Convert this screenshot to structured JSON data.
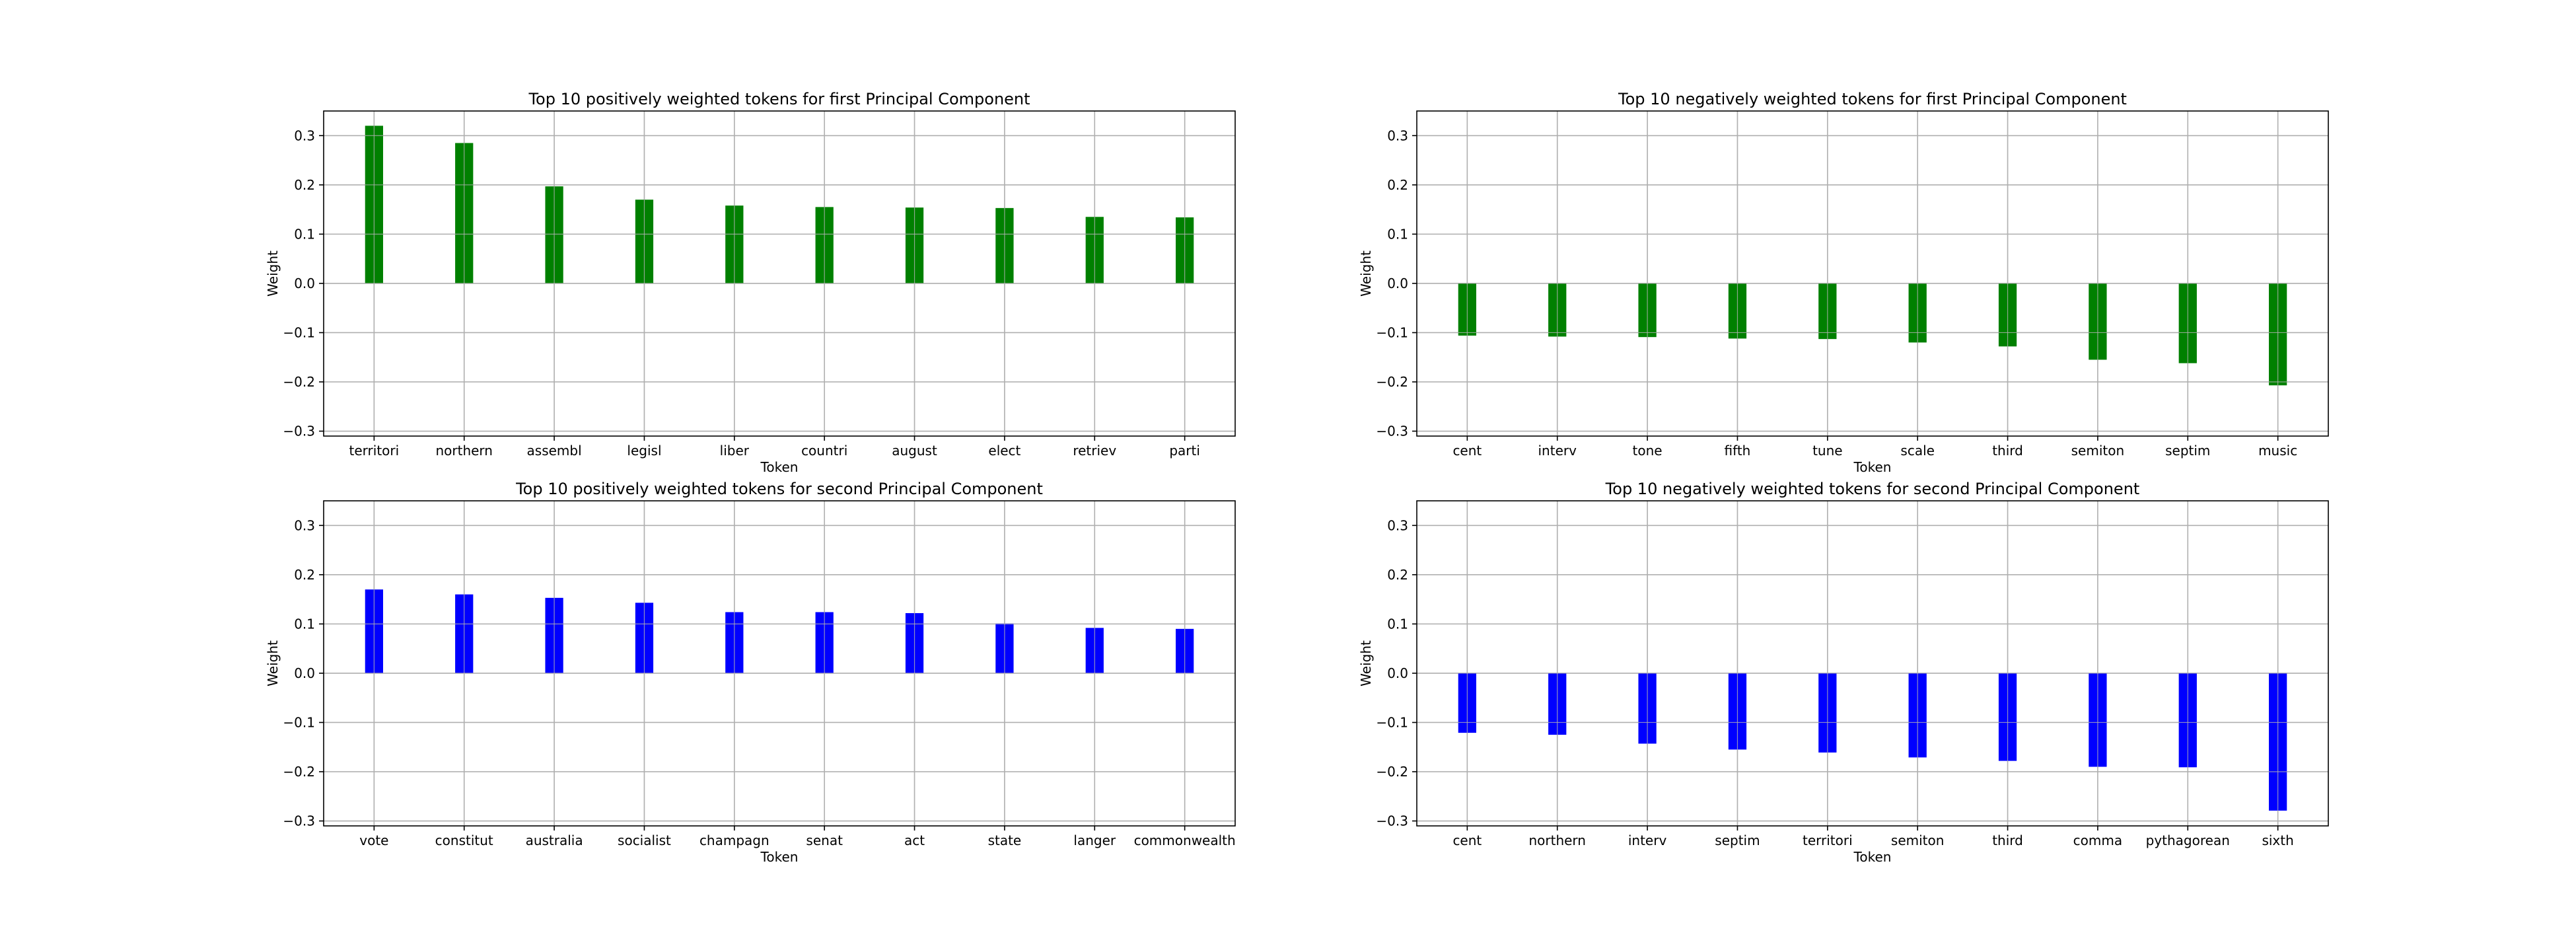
{
  "chart_data": [
    {
      "type": "bar",
      "title": "Top 10 positively weighted tokens for first Principal Component",
      "xlabel": "Token",
      "ylabel": "Weight",
      "color": "#008000",
      "categories": [
        "territori",
        "northern",
        "assembl",
        "legisl",
        "liber",
        "countri",
        "august",
        "elect",
        "retriev",
        "parti"
      ],
      "values": [
        0.32,
        0.285,
        0.197,
        0.17,
        0.158,
        0.155,
        0.154,
        0.153,
        0.135,
        0.134
      ],
      "ylim": [
        -0.31,
        0.35
      ],
      "yticks": [
        "-0.3",
        "-0.2",
        "-0.1",
        "0.0",
        "0.1",
        "0.2",
        "0.3"
      ],
      "grid": true
    },
    {
      "type": "bar",
      "title": "Top 10 negatively weighted tokens for first Principal Component",
      "xlabel": "Token",
      "ylabel": "Weight",
      "color": "#008000",
      "categories": [
        "cent",
        "interv",
        "tone",
        "fifth",
        "tune",
        "scale",
        "third",
        "semiton",
        "septim",
        "music"
      ],
      "values": [
        -0.106,
        -0.108,
        -0.109,
        -0.112,
        -0.113,
        -0.12,
        -0.128,
        -0.155,
        -0.162,
        -0.207
      ],
      "ylim": [
        -0.31,
        0.35
      ],
      "yticks": [
        "-0.3",
        "-0.2",
        "-0.1",
        "0.0",
        "0.1",
        "0.2",
        "0.3"
      ],
      "grid": true
    },
    {
      "type": "bar",
      "title": "Top 10 positively weighted tokens for second Principal Component",
      "xlabel": "Token",
      "ylabel": "Weight",
      "color": "#0000ff",
      "categories": [
        "vote",
        "constitut",
        "australia",
        "socialist",
        "champagn",
        "senat",
        "act",
        "state",
        "langer",
        "commonwealth"
      ],
      "values": [
        0.17,
        0.16,
        0.153,
        0.143,
        0.124,
        0.124,
        0.122,
        0.101,
        0.092,
        0.09
      ],
      "ylim": [
        -0.31,
        0.35
      ],
      "yticks": [
        "-0.3",
        "-0.2",
        "-0.1",
        "0.0",
        "0.1",
        "0.2",
        "0.3"
      ],
      "grid": true
    },
    {
      "type": "bar",
      "title": "Top 10 negatively weighted tokens for second Principal Component",
      "xlabel": "Token",
      "ylabel": "Weight",
      "color": "#0000ff",
      "categories": [
        "cent",
        "northern",
        "interv",
        "septim",
        "territori",
        "semiton",
        "third",
        "comma",
        "pythagorean",
        "sixth"
      ],
      "values": [
        -0.121,
        -0.125,
        -0.143,
        -0.155,
        -0.161,
        -0.171,
        -0.178,
        -0.19,
        -0.191,
        -0.279
      ],
      "ylim": [
        -0.31,
        0.35
      ],
      "yticks": [
        "-0.3",
        "-0.2",
        "-0.1",
        "0.0",
        "0.1",
        "0.2",
        "0.3"
      ],
      "grid": true
    }
  ]
}
